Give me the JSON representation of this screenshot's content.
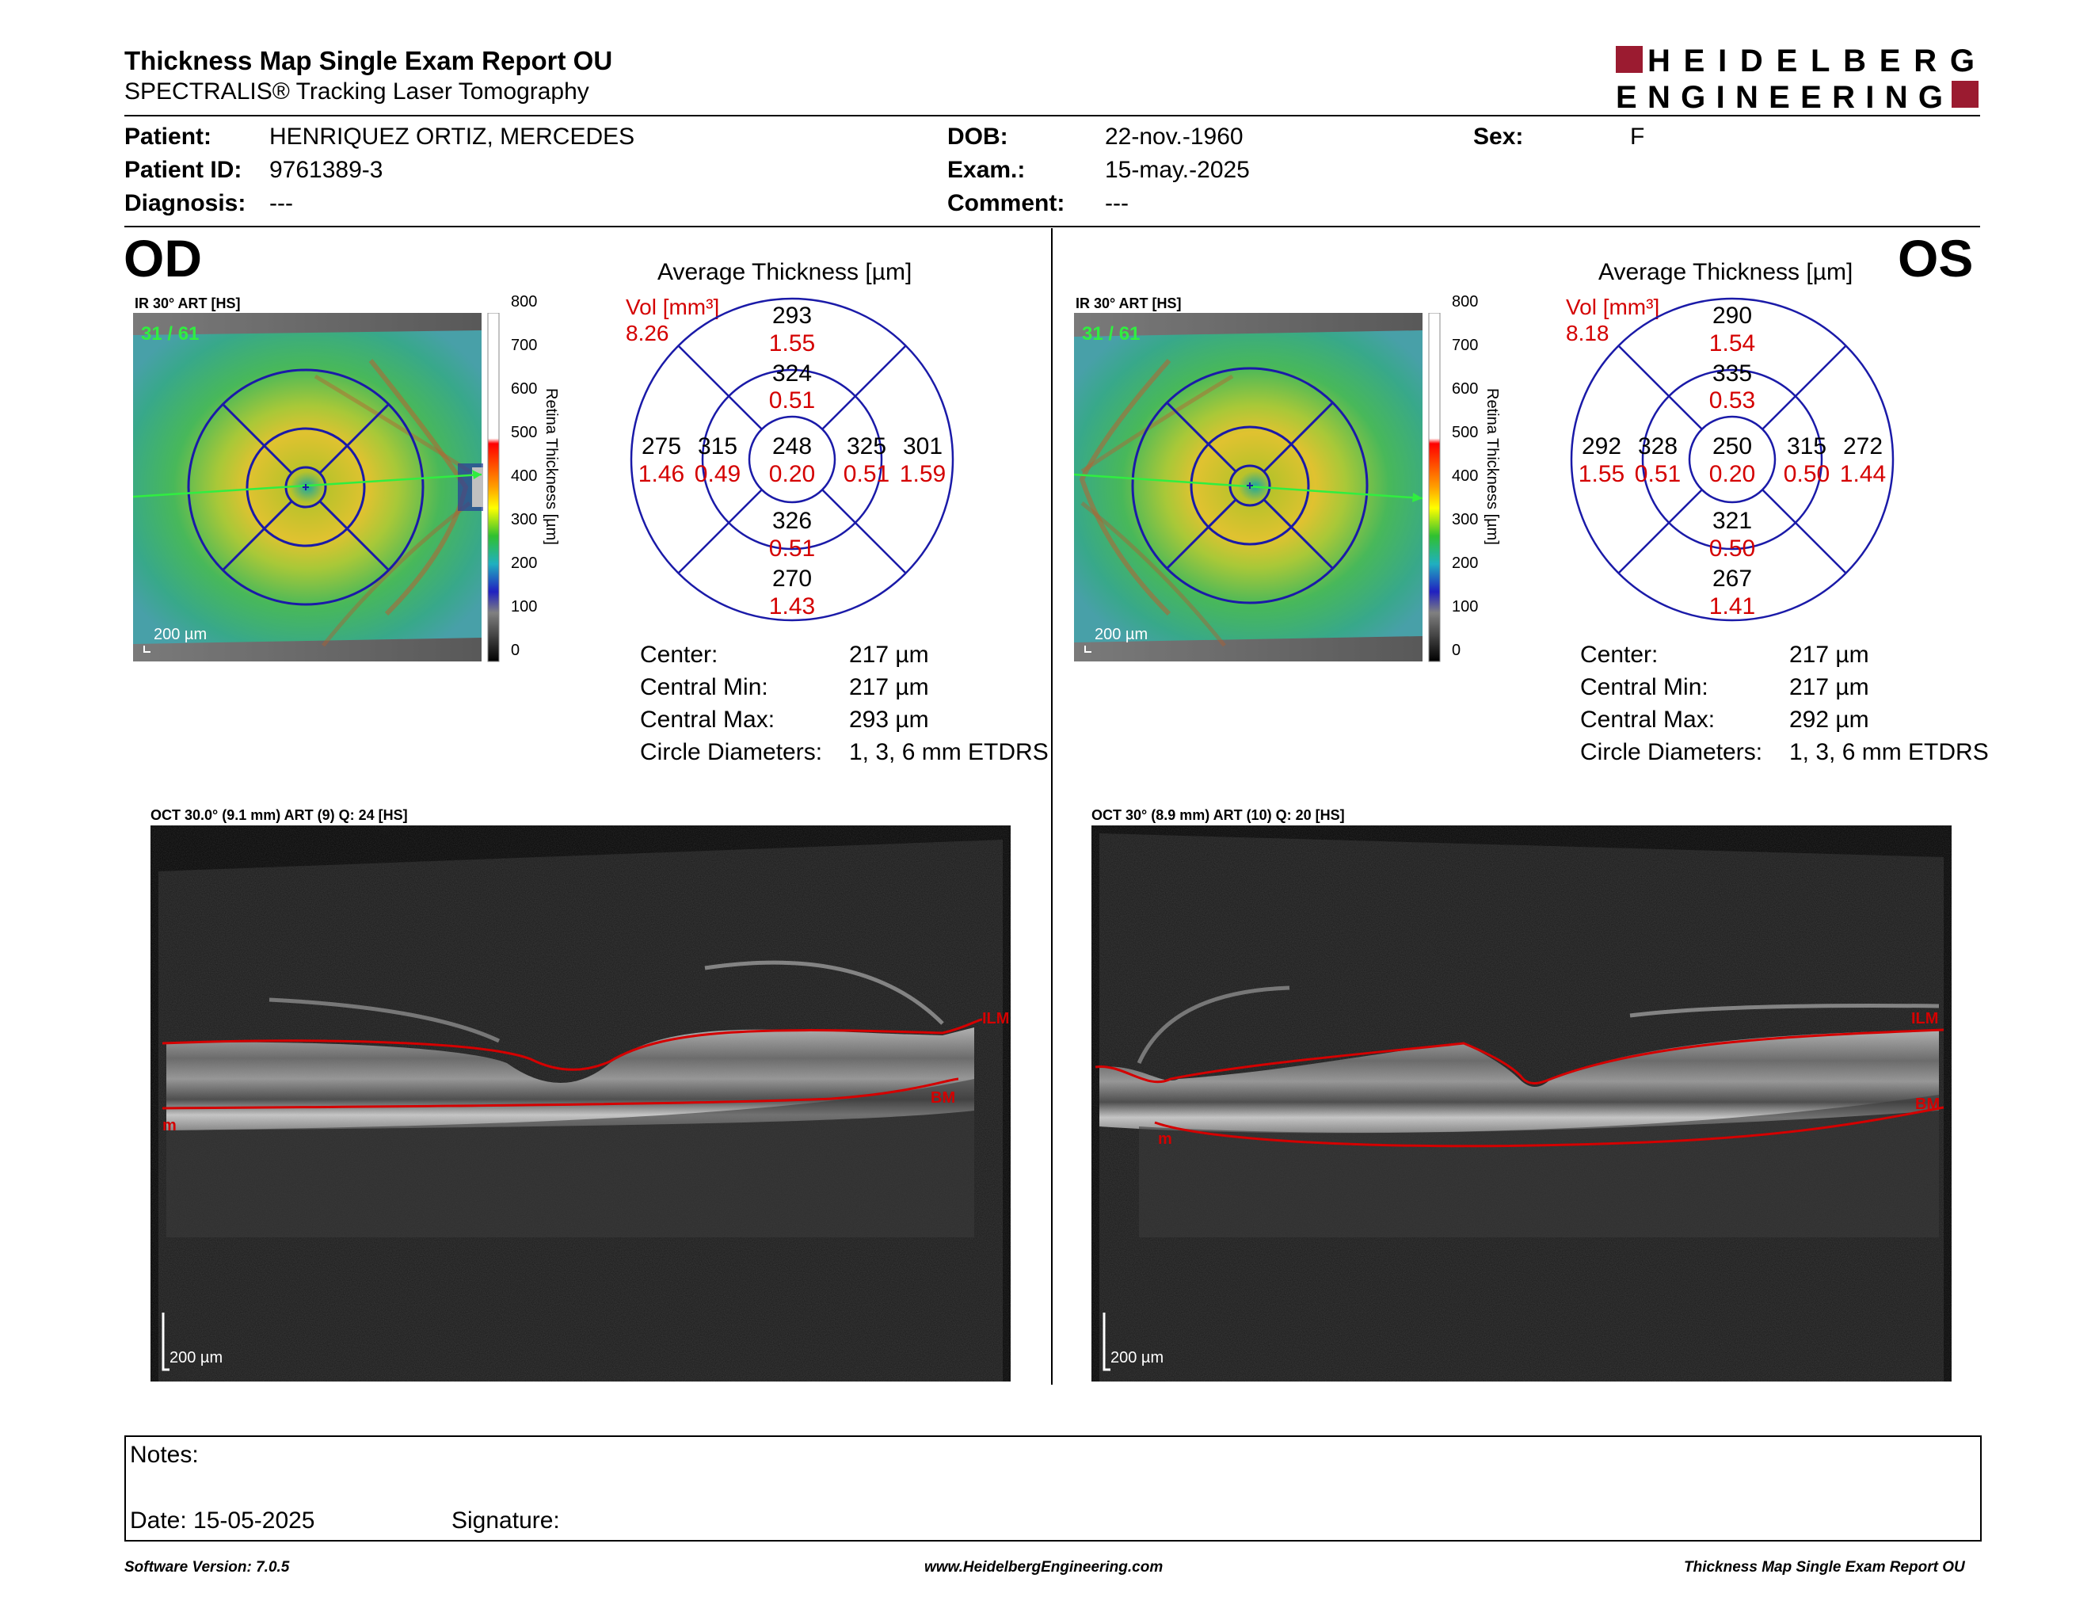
{
  "header": {
    "title": "Thickness Map Single Exam Report OU",
    "subtitle": "SPECTRALIS® Tracking Laser Tomography",
    "logo_line1": "HEIDELBERG",
    "logo_line2": "ENGINEERING"
  },
  "patient": {
    "patient_label": "Patient:",
    "patient_value": "HENRIQUEZ ORTIZ, MERCEDES",
    "id_label": "Patient ID:",
    "id_value": "9761389-3",
    "diagnosis_label": "Diagnosis:",
    "diagnosis_value": "---",
    "dob_label": "DOB:",
    "dob_value": "22-nov.-1960",
    "exam_label": "Exam.:",
    "exam_value": "15-may.-2025",
    "comment_label": "Comment:",
    "comment_value": "---",
    "sex_label": "Sex:",
    "sex_value": "F"
  },
  "colors": {
    "red": "#d40000",
    "blue": "#1a1aa8",
    "brand": "#9b1b30"
  },
  "od": {
    "eye": "OD",
    "ir_label": "IR 30° ART [HS]",
    "frames": "31 / 61",
    "scale": "200 µm",
    "colorbar_ticks": [
      "800",
      "700",
      "600",
      "500",
      "400",
      "300",
      "200",
      "100",
      "0"
    ],
    "colorbar_label": "Retina Thickness [µm]",
    "chart_title": "Average Thickness [µm]",
    "vol_label": "Vol [mm³]",
    "vol_value": "8.26",
    "sectors": {
      "outer_sup": [
        "293",
        "1.55"
      ],
      "inner_sup": [
        "324",
        "0.51"
      ],
      "outer_temp": [
        "275",
        "1.46"
      ],
      "inner_temp": [
        "315",
        "0.49"
      ],
      "center": [
        "248",
        "0.20"
      ],
      "inner_nas": [
        "325",
        "0.51"
      ],
      "outer_nas": [
        "301",
        "1.59"
      ],
      "inner_inf": [
        "326",
        "0.51"
      ],
      "outer_inf": [
        "270",
        "1.43"
      ]
    },
    "stats": [
      {
        "label": "Center:",
        "value": "217 µm"
      },
      {
        "label": "Central Min:",
        "value": "217 µm"
      },
      {
        "label": "Central Max:",
        "value": "293 µm"
      },
      {
        "label": "Circle Diameters:",
        "value": "1, 3, 6 mm ETDRS"
      }
    ],
    "oct_label": "OCT 30.0° (9.1 mm) ART (9) Q: 24 [HS]",
    "ilm": "ILM",
    "bm": "BM",
    "bm_left": "m",
    "oct_scale": "200 µm"
  },
  "os": {
    "eye": "OS",
    "ir_label": "IR 30° ART [HS]",
    "frames": "31 / 61",
    "scale": "200 µm",
    "colorbar_ticks": [
      "800",
      "700",
      "600",
      "500",
      "400",
      "300",
      "200",
      "100",
      "0"
    ],
    "colorbar_label": "Retina Thickness [µm]",
    "chart_title": "Average Thickness [µm]",
    "vol_label": "Vol [mm³]",
    "vol_value": "8.18",
    "sectors": {
      "outer_sup": [
        "290",
        "1.54"
      ],
      "inner_sup": [
        "335",
        "0.53"
      ],
      "outer_temp": [
        "292",
        "1.55"
      ],
      "inner_temp": [
        "328",
        "0.51"
      ],
      "center": [
        "250",
        "0.20"
      ],
      "inner_nas": [
        "315",
        "0.50"
      ],
      "outer_nas": [
        "272",
        "1.44"
      ],
      "inner_inf": [
        "321",
        "0.50"
      ],
      "outer_inf": [
        "267",
        "1.41"
      ]
    },
    "stats": [
      {
        "label": "Center:",
        "value": "217 µm"
      },
      {
        "label": "Central Min:",
        "value": "217 µm"
      },
      {
        "label": "Central Max:",
        "value": "292 µm"
      },
      {
        "label": "Circle Diameters:",
        "value": "1, 3, 6 mm ETDRS"
      }
    ],
    "oct_label": "OCT 30° (8.9 mm) ART (10) Q: 20 [HS]",
    "ilm": "ILM",
    "bm": "BM",
    "bm_left": "m",
    "oct_scale": "200 µm"
  },
  "notes": {
    "notes_label": "Notes:",
    "date_label": "Date: 15-05-2025",
    "signature_label": "Signature:"
  },
  "footer": {
    "software": "Software Version: 7.0.5",
    "website": "www.HeidelbergEngineering.com",
    "report": "Thickness Map Single Exam Report OU"
  }
}
